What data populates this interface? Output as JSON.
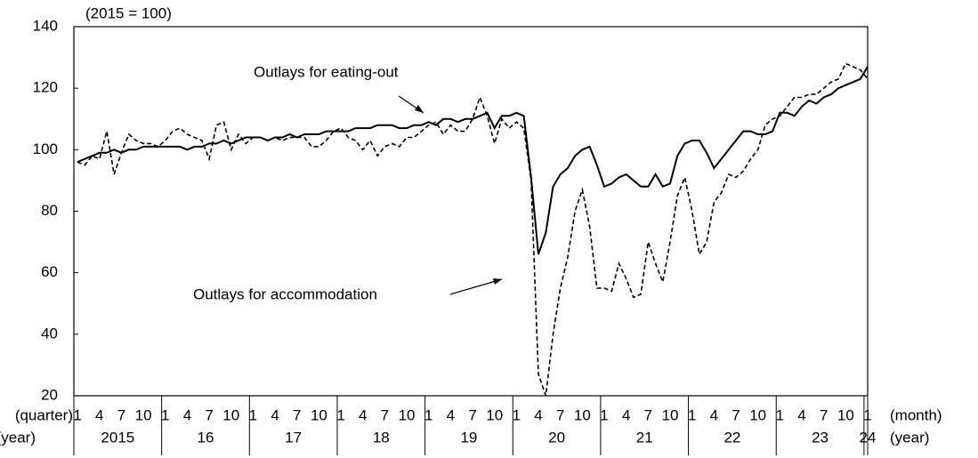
{
  "chart_data": {
    "type": "line",
    "subtitle": "(2015 = 100)",
    "x_unit_label": "(month)",
    "year_unit_label": "(year)",
    "left_unit_label": "(quarter)",
    "left_year_label": "(year)",
    "annotations": [
      "Outlays for eating-out",
      "Outlays for accommodation"
    ],
    "categories": [
      "1",
      null,
      null,
      "4",
      null,
      null,
      "7",
      null,
      null,
      "10",
      null,
      null,
      "1",
      null,
      null,
      "4",
      null,
      null,
      "7",
      null,
      null,
      "10",
      null,
      null,
      "1",
      null,
      null,
      "4",
      null,
      null,
      "7",
      null,
      null,
      "10",
      null,
      null,
      "1",
      null,
      null,
      "4",
      null,
      null,
      "7",
      null,
      null,
      "10",
      null,
      null,
      "1",
      null,
      null,
      "4",
      null,
      null,
      "7",
      null,
      null,
      "10",
      null,
      null,
      "1",
      null,
      null,
      "4",
      null,
      null,
      "7",
      null,
      null,
      "10",
      null,
      null,
      "1",
      null,
      null,
      "4",
      null,
      null,
      "7",
      null,
      null,
      "10",
      null,
      null,
      "1",
      null,
      null,
      "4",
      null,
      null,
      "7",
      null,
      null,
      "10",
      null,
      null,
      "1",
      null,
      null,
      "4",
      null,
      null,
      "7",
      null,
      null,
      "10",
      null,
      null,
      "1"
    ],
    "year_labels": [
      "2015",
      "16",
      "17",
      "18",
      "19",
      "20",
      "21",
      "22",
      "23",
      "24"
    ],
    "series": [
      {
        "name": "Outlays for eating-out",
        "color": "#000000",
        "line_style": "solid",
        "values": [
          96,
          97,
          98,
          99,
          99,
          100,
          99,
          100,
          100,
          101,
          101,
          101,
          101,
          101,
          101,
          100,
          101,
          101,
          102,
          102,
          103,
          102,
          103,
          104,
          104,
          104,
          103,
          104,
          104,
          105,
          104,
          105,
          105,
          105,
          106,
          106,
          106,
          106,
          107,
          107,
          107,
          108,
          108,
          108,
          107,
          107,
          108,
          108,
          109,
          108,
          110,
          110,
          109,
          110,
          110,
          111,
          112,
          107,
          111,
          111,
          112,
          111,
          91,
          66,
          73,
          88,
          92,
          94,
          98,
          100,
          101,
          95,
          88,
          89,
          91,
          92,
          90,
          88,
          88,
          92,
          88,
          89,
          98,
          102,
          103,
          103,
          99,
          94,
          97,
          100,
          103,
          106,
          106,
          105,
          105,
          106,
          112,
          112,
          111,
          114,
          116,
          115,
          117,
          118,
          120,
          121,
          122,
          123,
          127
        ]
      },
      {
        "name": "Outlays for accommodation",
        "color": "#000000",
        "line_style": "dashed",
        "values": [
          96,
          95,
          98,
          97,
          106,
          92,
          99,
          105,
          103,
          102,
          102,
          101,
          103,
          106,
          107,
          105,
          104,
          103,
          97,
          108,
          109,
          100,
          105,
          102,
          104,
          104,
          103,
          104,
          103,
          104,
          104,
          104,
          101,
          101,
          103,
          106,
          107,
          104,
          103,
          100,
          103,
          98,
          101,
          102,
          101,
          104,
          104,
          106,
          108,
          109,
          105,
          108,
          106,
          106,
          110,
          117,
          111,
          102,
          110,
          107,
          109,
          107,
          90,
          27,
          20,
          40,
          55,
          65,
          80,
          87,
          75,
          55,
          55,
          54,
          63,
          58,
          52,
          53,
          70,
          63,
          57,
          70,
          85,
          91,
          80,
          66,
          70,
          83,
          86,
          92,
          91,
          93,
          97,
          100,
          108,
          110,
          111,
          114,
          117,
          117,
          118,
          118,
          120,
          122,
          123,
          128,
          127,
          126,
          123
        ]
      }
    ],
    "ylim": [
      20,
      140
    ],
    "yticks": [
      20,
      40,
      60,
      80,
      100,
      120,
      140
    ],
    "grid": false
  }
}
